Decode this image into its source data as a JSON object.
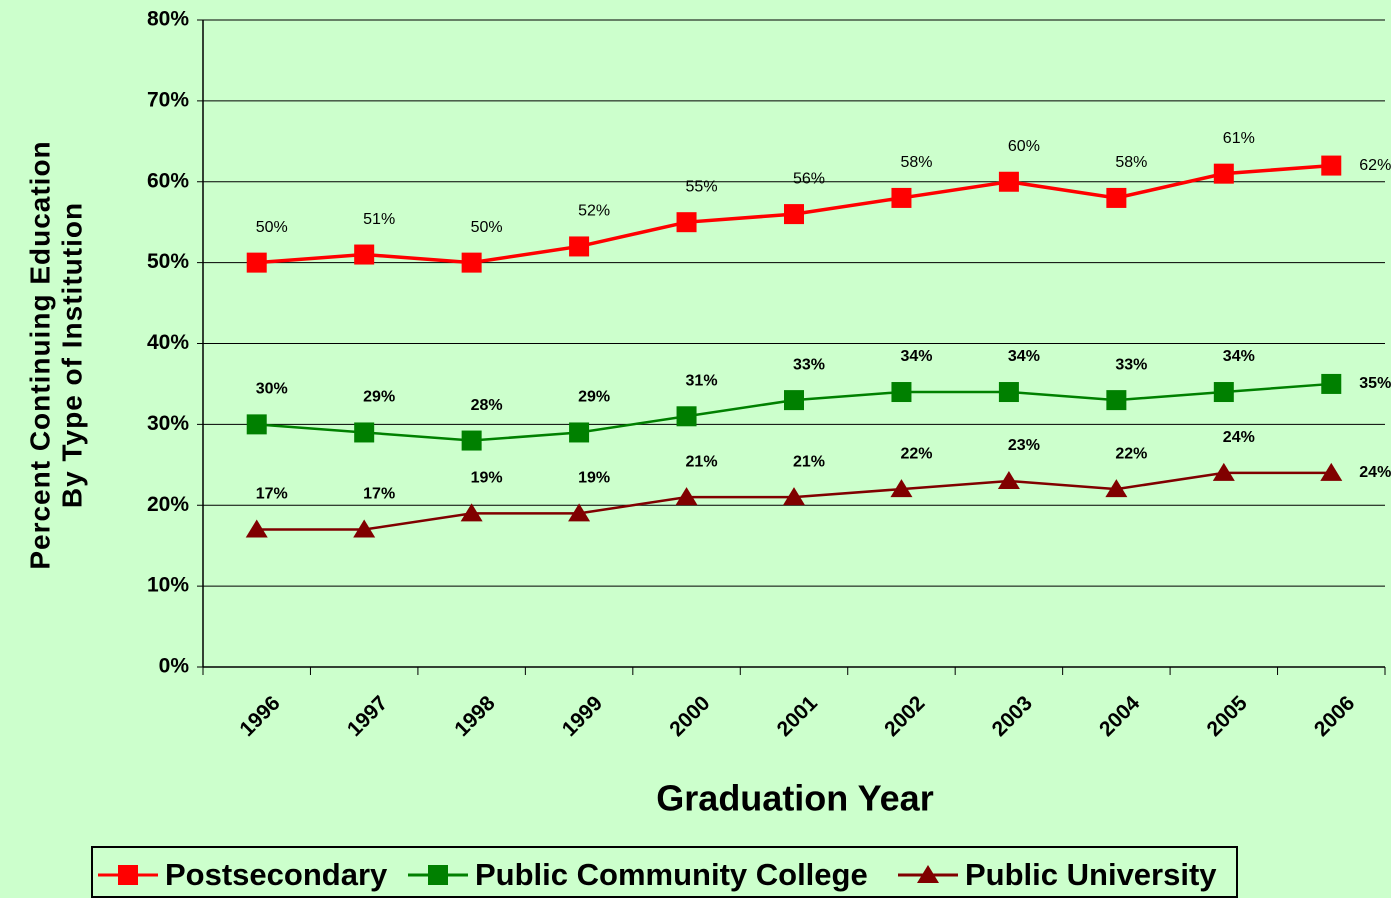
{
  "chart_data": {
    "type": "line",
    "xlabel": "Graduation Year",
    "ylabel": [
      "Percent Continuing Education",
      "By Type of Institution"
    ],
    "categories": [
      "1996",
      "1997",
      "1998",
      "1999",
      "2000",
      "2001",
      "2002",
      "2003",
      "2004",
      "2005",
      "2006"
    ],
    "series": [
      {
        "name": "Postsecondary",
        "color": "#ff0000",
        "marker": "square",
        "values": [
          50,
          51,
          50,
          52,
          55,
          56,
          58,
          60,
          58,
          61,
          62
        ],
        "value_labels": [
          "50%",
          "51%",
          "50%",
          "52%",
          "55%",
          "56%",
          "58%",
          "60%",
          "58%",
          "61%",
          "62%"
        ]
      },
      {
        "name": "Public Community College",
        "color": "#008000",
        "marker": "square",
        "values": [
          30,
          29,
          28,
          29,
          31,
          33,
          34,
          34,
          33,
          34,
          35
        ],
        "value_labels": [
          "30%",
          "29%",
          "28%",
          "29%",
          "31%",
          "33%",
          "34%",
          "34%",
          "33%",
          "34%",
          "35%"
        ]
      },
      {
        "name": "Public University",
        "color": "#800000",
        "marker": "triangle",
        "values": [
          17,
          17,
          19,
          19,
          21,
          21,
          22,
          23,
          22,
          24,
          24
        ],
        "value_labels": [
          "17%",
          "17%",
          "19%",
          "19%",
          "21%",
          "21%",
          "22%",
          "23%",
          "22%",
          "24%",
          "24%"
        ]
      }
    ],
    "ylim": [
      0,
      80
    ],
    "yticks": [
      {
        "value": 0,
        "label": "0%"
      },
      {
        "value": 10,
        "label": "10%"
      },
      {
        "value": 20,
        "label": "20%"
      },
      {
        "value": 30,
        "label": "30%"
      },
      {
        "value": 40,
        "label": "40%"
      },
      {
        "value": 50,
        "label": "50%"
      },
      {
        "value": 60,
        "label": "60%"
      },
      {
        "value": 70,
        "label": "70%"
      },
      {
        "value": 80,
        "label": "80%"
      }
    ],
    "grid": true,
    "legend": "bottom"
  }
}
